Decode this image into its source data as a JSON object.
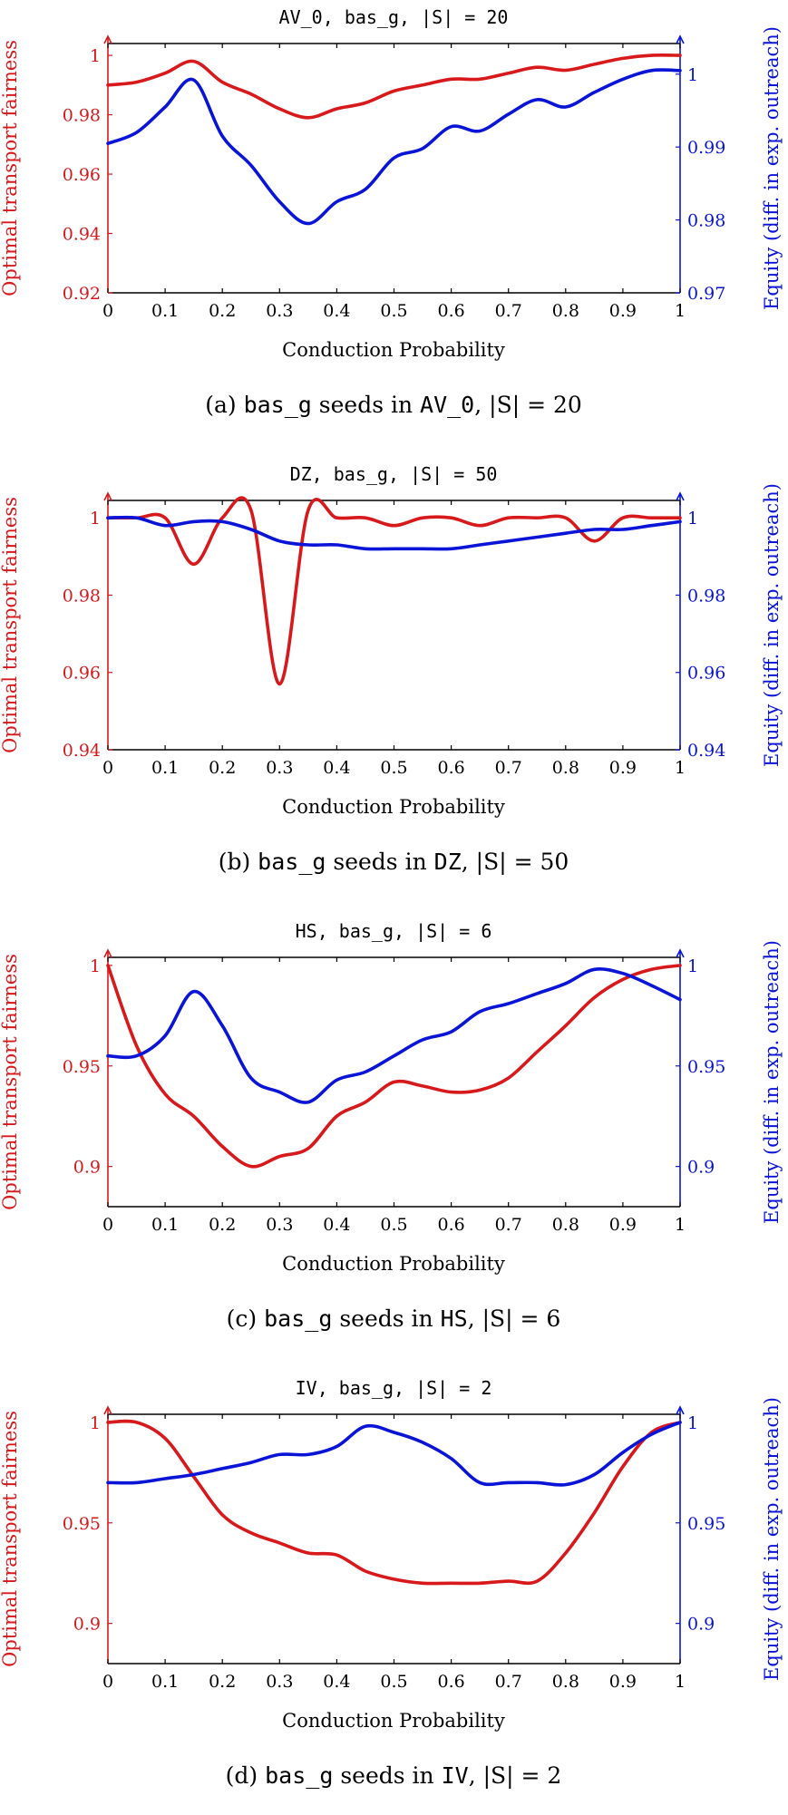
{
  "colors": {
    "left": "#d7191c",
    "right": "#0a14d6",
    "frame": "#000000"
  },
  "xlabel": "Conduction Probability",
  "ylabel_left": "Optimal transport fairness",
  "ylabel_right": "Equity (diff. in exp. outreach)",
  "chart_data": [
    {
      "type": "line",
      "title_parts": [
        "AV_0",
        ", ",
        "bas_g",
        ", |S| = 20"
      ],
      "caption_parts": [
        "(a) ",
        "bas_g",
        " seeds in ",
        "AV_0",
        ", |S| = 20"
      ],
      "x": [
        0,
        0.05,
        0.1,
        0.15,
        0.2,
        0.25,
        0.3,
        0.35,
        0.4,
        0.45,
        0.5,
        0.55,
        0.6,
        0.65,
        0.7,
        0.75,
        0.8,
        0.85,
        0.9,
        0.95,
        1
      ],
      "xlim": [
        0,
        1
      ],
      "xticks": [
        "0",
        "0.1",
        "0.2",
        "0.3",
        "0.4",
        "0.5",
        "0.6",
        "0.7",
        "0.8",
        "0.9",
        "1"
      ],
      "left_axis": {
        "ylim": [
          0.92,
          1.004
        ],
        "ticks": [
          0.92,
          0.94,
          0.96,
          0.98,
          1
        ],
        "tick_labels": [
          "0.92",
          "0.94",
          "0.96",
          "0.98",
          "1"
        ]
      },
      "right_axis": {
        "ylim": [
          0.97,
          1.0042
        ],
        "ticks": [
          0.97,
          0.98,
          0.99,
          1
        ],
        "tick_labels": [
          "0.97",
          "0.98",
          "0.99",
          "1"
        ]
      },
      "series": [
        {
          "name": "Optimal transport fairness",
          "axis": "left",
          "values": [
            0.99,
            0.991,
            0.994,
            0.998,
            0.991,
            0.987,
            0.982,
            0.979,
            0.982,
            0.984,
            0.988,
            0.99,
            0.992,
            0.992,
            0.994,
            0.996,
            0.995,
            0.997,
            0.999,
            1.0,
            1.0
          ]
        },
        {
          "name": "Equity (diff. in exp. outreach)",
          "axis": "right",
          "values": [
            0.9905,
            0.992,
            0.9955,
            0.9992,
            0.9915,
            0.9875,
            0.9825,
            0.9795,
            0.9825,
            0.9842,
            0.9885,
            0.9898,
            0.9928,
            0.9922,
            0.9945,
            0.9965,
            0.9955,
            0.9975,
            0.9993,
            1.0005,
            1.0005
          ]
        }
      ]
    },
    {
      "type": "line",
      "title_parts": [
        "DZ",
        ", ",
        "bas_g",
        ", |S| = 50"
      ],
      "caption_parts": [
        "(b) ",
        "bas_g",
        " seeds in ",
        "DZ",
        ", |S| = 50"
      ],
      "x": [
        0,
        0.05,
        0.1,
        0.15,
        0.2,
        0.25,
        0.3,
        0.35,
        0.4,
        0.45,
        0.5,
        0.55,
        0.6,
        0.65,
        0.7,
        0.75,
        0.8,
        0.85,
        0.9,
        0.95,
        1
      ],
      "xlim": [
        0,
        1
      ],
      "xticks": [
        "0",
        "0.1",
        "0.2",
        "0.3",
        "0.4",
        "0.5",
        "0.6",
        "0.7",
        "0.8",
        "0.9",
        "1"
      ],
      "left_axis": {
        "ylim": [
          0.94,
          1.0045
        ],
        "ticks": [
          0.94,
          0.96,
          0.98,
          1
        ],
        "tick_labels": [
          "0.94",
          "0.96",
          "0.98",
          "1"
        ]
      },
      "right_axis": {
        "ylim": [
          0.94,
          1.0045
        ],
        "ticks": [
          0.94,
          0.96,
          0.98,
          1
        ],
        "tick_labels": [
          "0.94",
          "0.96",
          "0.98",
          "1"
        ]
      },
      "series": [
        {
          "name": "Optimal transport fairness",
          "axis": "left",
          "values": [
            1.0,
            1.0,
            1.0,
            0.988,
            1.0,
            1.002,
            0.957,
            1.002,
            1.0,
            1.0,
            0.998,
            1.0,
            1.0,
            0.998,
            1.0,
            1.0,
            1.0,
            0.994,
            1.0,
            1.0,
            1.0
          ]
        },
        {
          "name": "Equity (diff. in exp. outreach)",
          "axis": "right",
          "values": [
            1.0,
            1.0,
            0.998,
            0.999,
            0.999,
            0.997,
            0.994,
            0.993,
            0.993,
            0.992,
            0.992,
            0.992,
            0.992,
            0.993,
            0.994,
            0.995,
            0.996,
            0.997,
            0.997,
            0.998,
            0.999
          ]
        }
      ]
    },
    {
      "type": "line",
      "title_parts": [
        "HS",
        ", ",
        "bas_g",
        ", |S| = 6"
      ],
      "caption_parts": [
        "(c) ",
        "bas_g",
        " seeds in ",
        "HS",
        ", |S| = 6"
      ],
      "x": [
        0,
        0.05,
        0.1,
        0.15,
        0.2,
        0.25,
        0.3,
        0.35,
        0.4,
        0.45,
        0.5,
        0.55,
        0.6,
        0.65,
        0.7,
        0.75,
        0.8,
        0.85,
        0.9,
        0.95,
        1
      ],
      "xlim": [
        0,
        1
      ],
      "xticks": [
        "0",
        "0.1",
        "0.2",
        "0.3",
        "0.4",
        "0.5",
        "0.6",
        "0.7",
        "0.8",
        "0.9",
        "1"
      ],
      "left_axis": {
        "ylim": [
          0.88,
          1.004
        ],
        "ticks": [
          0.9,
          0.95,
          1
        ],
        "tick_labels": [
          "0.9",
          "0.95",
          "1"
        ]
      },
      "right_axis": {
        "ylim": [
          0.88,
          1.004
        ],
        "ticks": [
          0.9,
          0.95,
          1
        ],
        "tick_labels": [
          "0.9",
          "0.95",
          "1"
        ]
      },
      "series": [
        {
          "name": "Optimal transport fairness",
          "axis": "left",
          "values": [
            1.0,
            0.96,
            0.936,
            0.925,
            0.91,
            0.9,
            0.905,
            0.909,
            0.925,
            0.932,
            0.942,
            0.94,
            0.937,
            0.938,
            0.944,
            0.957,
            0.97,
            0.984,
            0.993,
            0.998,
            1.0
          ]
        },
        {
          "name": "Equity (diff. in exp. outreach)",
          "axis": "right",
          "values": [
            0.955,
            0.955,
            0.965,
            0.987,
            0.97,
            0.944,
            0.937,
            0.932,
            0.943,
            0.947,
            0.955,
            0.963,
            0.967,
            0.977,
            0.981,
            0.986,
            0.991,
            0.998,
            0.996,
            0.99,
            0.983
          ]
        }
      ]
    },
    {
      "type": "line",
      "title_parts": [
        "IV",
        ", ",
        "bas_g",
        ", |S| = 2"
      ],
      "caption_parts": [
        "(d) ",
        "bas_g",
        " seeds in ",
        "IV",
        ", |S| = 2"
      ],
      "x": [
        0,
        0.05,
        0.1,
        0.15,
        0.2,
        0.25,
        0.3,
        0.35,
        0.4,
        0.45,
        0.5,
        0.55,
        0.6,
        0.65,
        0.7,
        0.75,
        0.8,
        0.85,
        0.9,
        0.95,
        1
      ],
      "xlim": [
        0,
        1
      ],
      "xticks": [
        "0",
        "0.1",
        "0.2",
        "0.3",
        "0.4",
        "0.5",
        "0.6",
        "0.7",
        "0.8",
        "0.9",
        "1"
      ],
      "left_axis": {
        "ylim": [
          0.88,
          1.004
        ],
        "ticks": [
          0.9,
          0.95,
          1
        ],
        "tick_labels": [
          "0.9",
          "0.95",
          "1"
        ]
      },
      "right_axis": {
        "ylim": [
          0.88,
          1.004
        ],
        "ticks": [
          0.9,
          0.95,
          1
        ],
        "tick_labels": [
          "0.9",
          "0.95",
          "1"
        ]
      },
      "series": [
        {
          "name": "Optimal transport fairness",
          "axis": "left",
          "values": [
            1.0,
            1.0,
            0.992,
            0.973,
            0.954,
            0.945,
            0.94,
            0.935,
            0.934,
            0.926,
            0.922,
            0.92,
            0.92,
            0.92,
            0.921,
            0.921,
            0.935,
            0.955,
            0.978,
            0.995,
            1.0
          ]
        },
        {
          "name": "Equity (diff. in exp. outreach)",
          "axis": "right",
          "values": [
            0.97,
            0.97,
            0.972,
            0.974,
            0.977,
            0.98,
            0.984,
            0.984,
            0.988,
            0.998,
            0.995,
            0.99,
            0.982,
            0.97,
            0.97,
            0.97,
            0.969,
            0.974,
            0.985,
            0.994,
            1.0
          ]
        }
      ]
    }
  ]
}
